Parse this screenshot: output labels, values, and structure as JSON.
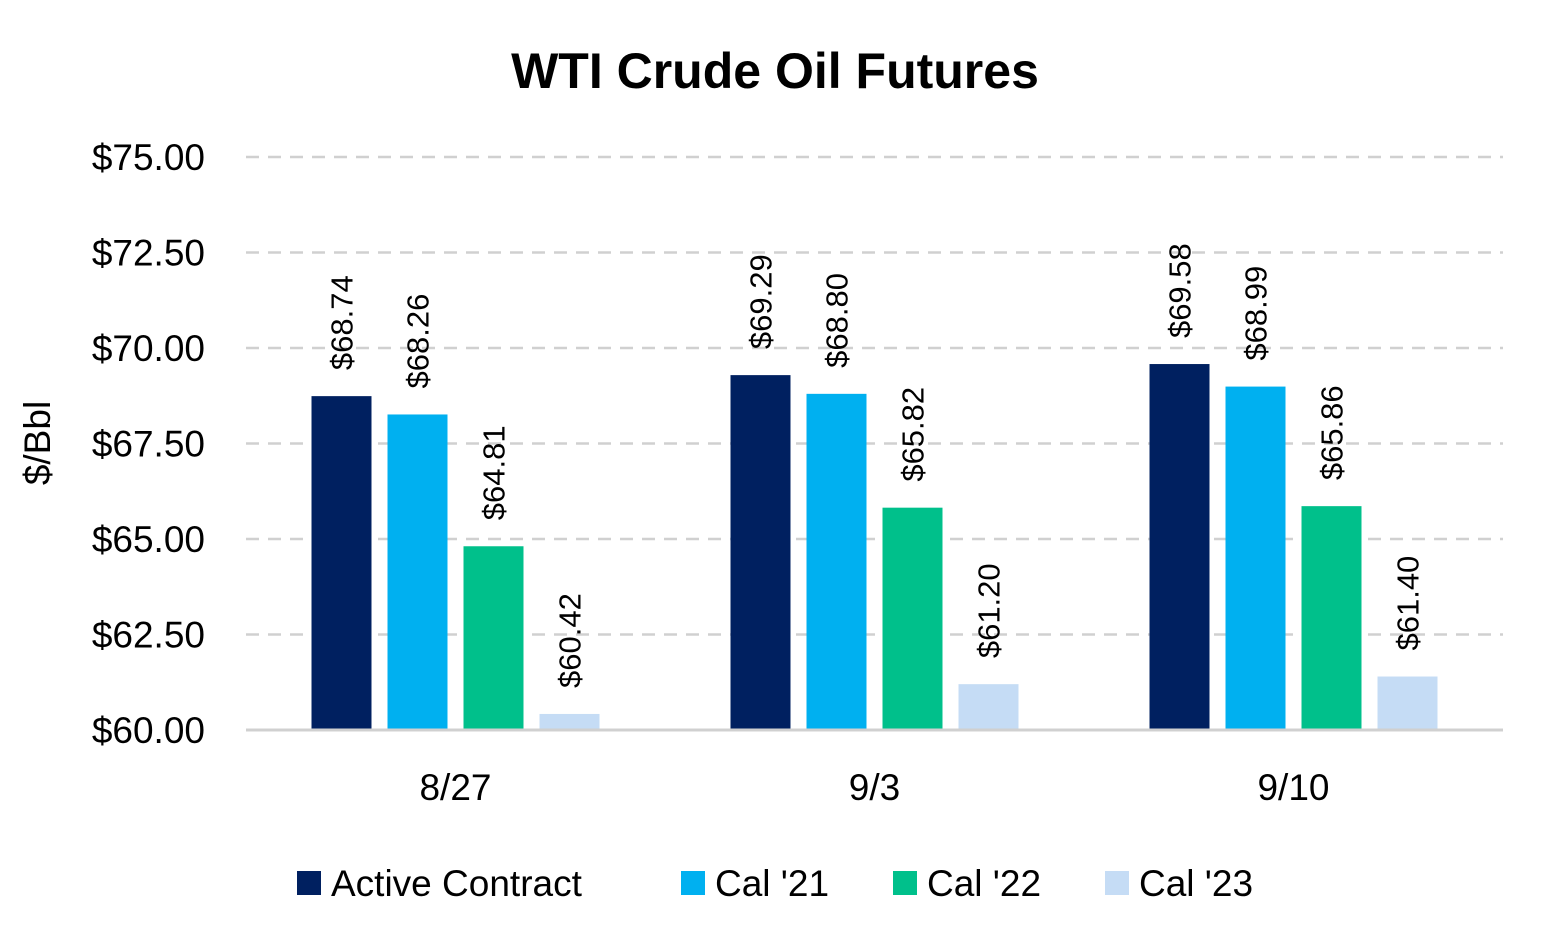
{
  "chart_data": {
    "type": "bar",
    "title": "WTI Crude Oil Futures",
    "xlabel": "",
    "ylabel": "$/Bbl",
    "categories": [
      "8/27",
      "9/3",
      "9/10"
    ],
    "series": [
      {
        "name": "Active Contract",
        "color": "#002060",
        "values": [
          68.74,
          69.29,
          69.58
        ],
        "labels": [
          "$68.74",
          "$69.29",
          "$69.58"
        ]
      },
      {
        "name": "Cal '21",
        "color": "#00B0F0",
        "values": [
          68.26,
          68.8,
          68.99
        ],
        "labels": [
          "$68.26",
          "$68.80",
          "$68.99"
        ]
      },
      {
        "name": "Cal '22",
        "color": "#00C08B",
        "values": [
          64.81,
          65.82,
          65.86
        ],
        "labels": [
          "$64.81",
          "$65.82",
          "$65.86"
        ]
      },
      {
        "name": "Cal '23",
        "color": "#C5DCF5",
        "values": [
          60.42,
          61.2,
          61.4
        ],
        "labels": [
          "$60.42",
          "$61.20",
          "$61.40"
        ]
      }
    ],
    "ylim": [
      60,
      75
    ],
    "yticks": [
      60,
      62.5,
      65,
      67.5,
      70,
      72.5,
      75
    ],
    "ytick_labels": [
      "$60.00",
      "$62.50",
      "$65.00",
      "$67.50",
      "$70.00",
      "$72.50",
      "$75.00"
    ],
    "grid": true,
    "grid_style": "dashed",
    "legend_position": "bottom"
  }
}
